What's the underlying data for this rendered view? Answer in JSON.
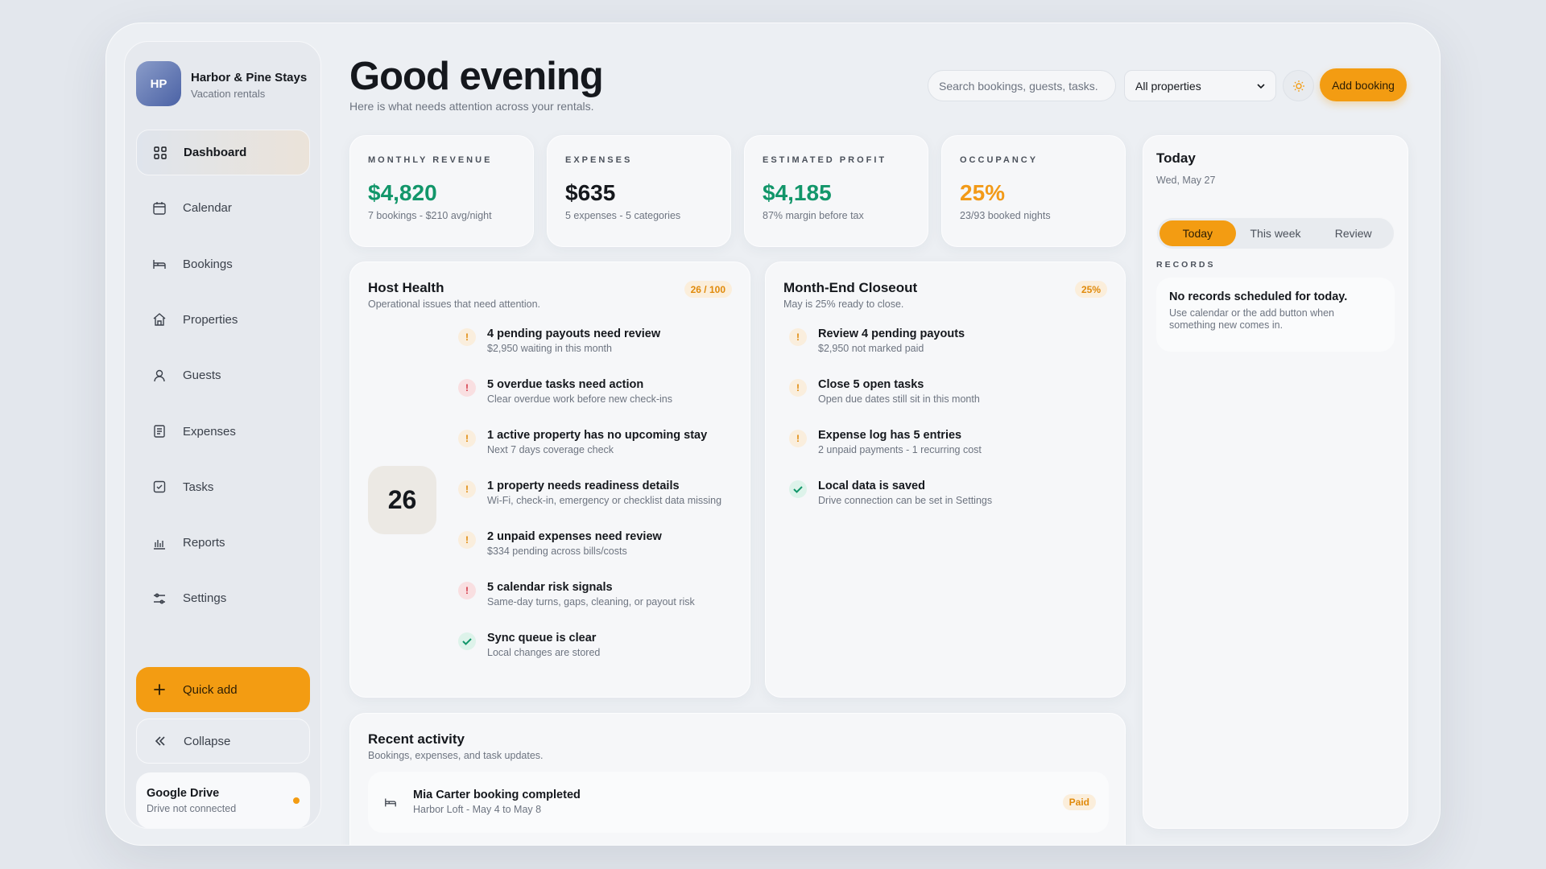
{
  "sidebar": {
    "brand": {
      "initials": "HP",
      "name": "Harbor & Pine Stays",
      "subtitle": "Vacation rentals"
    },
    "nav": [
      "Dashboard",
      "Calendar",
      "Bookings",
      "Properties",
      "Guests",
      "Expenses",
      "Tasks",
      "Reports",
      "Settings"
    ],
    "active": "Dashboard",
    "quick_add": "Quick add",
    "collapse": "Collapse",
    "drive": {
      "title": "Google Drive",
      "status": "Drive not connected"
    }
  },
  "header": {
    "title": "Good evening",
    "subtitle": "Here is what needs attention across your rentals.",
    "search_placeholder": "Search bookings, guests, tasks.",
    "property_filter": "All properties",
    "add_button": "Add booking"
  },
  "stats": [
    {
      "label": "MONTHLY REVENUE",
      "value": "$4,820",
      "note": "7 bookings - $210 avg/night",
      "color": "#12966a"
    },
    {
      "label": "EXPENSES",
      "value": "$635",
      "note": "5 expenses - 5 categories",
      "color": "#15181d"
    },
    {
      "label": "ESTIMATED PROFIT",
      "value": "$4,185",
      "note": "87% margin before tax",
      "color": "#12966a"
    },
    {
      "label": "OCCUPANCY",
      "value": "25%",
      "note": "23/93 booked nights",
      "color": "#f29a18"
    }
  ],
  "host_health": {
    "title": "Host Health",
    "subtitle": "Operational issues that need attention.",
    "badge": "26 / 100",
    "score": "26",
    "items": [
      {
        "status": "warning",
        "title": "4 pending payouts need review",
        "detail": "$2,950 waiting in this month"
      },
      {
        "status": "danger",
        "title": "5 overdue tasks need action",
        "detail": "Clear overdue work before new check-ins"
      },
      {
        "status": "warning",
        "title": "1 active property has no upcoming stay",
        "detail": "Next 7 days coverage check"
      },
      {
        "status": "warning",
        "title": "1 property needs readiness details",
        "detail": "Wi-Fi, check-in, emergency or checklist data missing"
      },
      {
        "status": "warning",
        "title": "2 unpaid expenses need review",
        "detail": "$334 pending across bills/costs"
      },
      {
        "status": "danger",
        "title": "5 calendar risk signals",
        "detail": "Same-day turns, gaps, cleaning, or payout risk"
      },
      {
        "status": "ok",
        "title": "Sync queue is clear",
        "detail": "Local changes are stored"
      }
    ]
  },
  "closeout": {
    "title": "Month-End Closeout",
    "subtitle": "May is 25% ready to close.",
    "badge": "25%",
    "items": [
      {
        "status": "warning",
        "title": "Review 4 pending payouts",
        "detail": "$2,950 not marked paid"
      },
      {
        "status": "warning",
        "title": "Close 5 open tasks",
        "detail": "Open due dates still sit in this month"
      },
      {
        "status": "warning",
        "title": "Expense log has 5 entries",
        "detail": "2 unpaid payments - 1 recurring cost"
      },
      {
        "status": "ok",
        "title": "Local data is saved",
        "detail": "Drive connection can be set in Settings"
      }
    ]
  },
  "today": {
    "title": "Today",
    "date": "Wed, May 27",
    "tabs": [
      "Today",
      "This week",
      "Review"
    ],
    "active_tab": "Today",
    "records_label": "RECORDS",
    "empty_title": "No records scheduled for today.",
    "empty_text": "Use calendar or the add button when something new comes in."
  },
  "recent_activity": {
    "title": "Recent activity",
    "subtitle": "Bookings, expenses, and task updates.",
    "items": [
      {
        "title": "Mia Carter booking completed",
        "detail": "Harbor Loft - May 4 to May 8",
        "badge": "Paid"
      }
    ]
  }
}
